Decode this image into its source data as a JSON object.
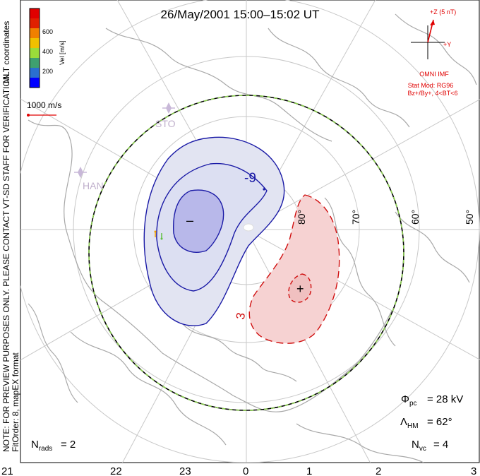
{
  "title": "26/May/2001 15:00–15:02 UT",
  "colorbar": {
    "label": "Vel [m/s]",
    "ticks": [
      "600",
      "400",
      "200"
    ],
    "colors": [
      "#0000ff",
      "#2a6fd0",
      "#3fa070",
      "#9adc3a",
      "#f0c000",
      "#f08000",
      "#e02000",
      "#e00000"
    ]
  },
  "left_margin_text": {
    "mlt": "MLT coordinates",
    "note": "NOTE: FOR PREVIEW PURPOSES ONLY. PLEASE CONTACT VT-SD STAFF FOR VERIFICATION.",
    "fit": "FitOrder: 8, mapEX format"
  },
  "vector_scale": "1000 m/s",
  "imf": {
    "z_label": "+Z (5 nT)",
    "y_label": "+Y",
    "source": "OMNI IMF",
    "model": "Stat Mod: RG96",
    "condition": "Bz+/By+, 4<BT<6"
  },
  "stations": [
    "STO",
    "HAN"
  ],
  "lat_labels": [
    "80°",
    "70°",
    "60°",
    "50°"
  ],
  "contours": {
    "neg_label": "-9",
    "pos_label": "3",
    "min_marker": "–",
    "max_marker": "+"
  },
  "stats": {
    "phi_pc": "= 28 kV",
    "lambda_hm": "= 62°",
    "n_vc": "= 4",
    "n_rads": "= 2"
  },
  "mlt_ticks": [
    "21",
    "22",
    "23",
    "0",
    "1",
    "2",
    "3"
  ],
  "colors": {
    "neg_fill": "#e2e4f2",
    "neg_core": "#b8b8ea",
    "neg_line": "#1a1aa6",
    "pos_fill": "#f6d2d2",
    "pos_line": "#d01010",
    "boundary_dash": "#8cd050",
    "land": "#a8a8a8",
    "grid": "#c8c8c8"
  }
}
